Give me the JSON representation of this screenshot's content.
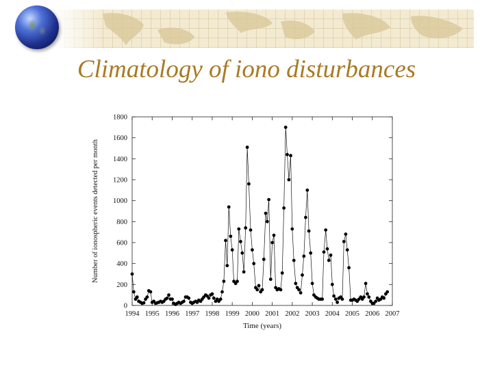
{
  "slide": {
    "title": "Climatology of iono disturbances",
    "accent_color": "#a97a24",
    "banner_color": "#f3ead2",
    "decoration": "globe-icon"
  },
  "chart_data": {
    "type": "scatter",
    "connected": true,
    "marker": "filled-circle",
    "title": "",
    "xlabel": "Time (years)",
    "ylabel": "Number of ionospheric events detected per month",
    "xlim": [
      1994,
      2007
    ],
    "ylim": [
      0,
      1800
    ],
    "xticks": [
      "1994",
      "1995",
      "1996",
      "1997",
      "1998",
      "1999",
      "2000",
      "2001",
      "2002",
      "2003",
      "2004",
      "2005",
      "2006",
      "2007"
    ],
    "yticks": [
      "0",
      "200",
      "400",
      "600",
      "800",
      "1000",
      "1200",
      "1400",
      "1600",
      "1800"
    ],
    "grid": false,
    "series": [
      {
        "color": "#000000",
        "points": [
          [
            1994.0,
            300
          ],
          [
            1994.08,
            130
          ],
          [
            1994.17,
            60
          ],
          [
            1994.25,
            80
          ],
          [
            1994.33,
            40
          ],
          [
            1994.42,
            30
          ],
          [
            1994.5,
            20
          ],
          [
            1994.58,
            25
          ],
          [
            1994.67,
            60
          ],
          [
            1994.75,
            80
          ],
          [
            1994.83,
            140
          ],
          [
            1994.92,
            130
          ],
          [
            1995.0,
            30
          ],
          [
            1995.08,
            40
          ],
          [
            1995.17,
            20
          ],
          [
            1995.25,
            25
          ],
          [
            1995.33,
            30
          ],
          [
            1995.42,
            40
          ],
          [
            1995.5,
            30
          ],
          [
            1995.58,
            40
          ],
          [
            1995.67,
            60
          ],
          [
            1995.75,
            70
          ],
          [
            1995.83,
            100
          ],
          [
            1995.92,
            60
          ],
          [
            1996.0,
            60
          ],
          [
            1996.08,
            20
          ],
          [
            1996.17,
            10
          ],
          [
            1996.25,
            20
          ],
          [
            1996.33,
            30
          ],
          [
            1996.42,
            20
          ],
          [
            1996.5,
            30
          ],
          [
            1996.58,
            40
          ],
          [
            1996.67,
            80
          ],
          [
            1996.75,
            80
          ],
          [
            1996.83,
            70
          ],
          [
            1996.92,
            30
          ],
          [
            1997.0,
            20
          ],
          [
            1997.08,
            30
          ],
          [
            1997.17,
            40
          ],
          [
            1997.25,
            30
          ],
          [
            1997.33,
            50
          ],
          [
            1997.42,
            40
          ],
          [
            1997.5,
            60
          ],
          [
            1997.58,
            80
          ],
          [
            1997.67,
            100
          ],
          [
            1997.75,
            90
          ],
          [
            1997.83,
            70
          ],
          [
            1997.92,
            100
          ],
          [
            1998.0,
            110
          ],
          [
            1998.08,
            70
          ],
          [
            1998.17,
            40
          ],
          [
            1998.25,
            60
          ],
          [
            1998.33,
            40
          ],
          [
            1998.42,
            60
          ],
          [
            1998.5,
            130
          ],
          [
            1998.58,
            230
          ],
          [
            1998.67,
            620
          ],
          [
            1998.75,
            380
          ],
          [
            1998.83,
            940
          ],
          [
            1998.92,
            660
          ],
          [
            1999.0,
            530
          ],
          [
            1999.08,
            230
          ],
          [
            1999.17,
            210
          ],
          [
            1999.25,
            230
          ],
          [
            1999.33,
            730
          ],
          [
            1999.42,
            610
          ],
          [
            1999.5,
            500
          ],
          [
            1999.58,
            320
          ],
          [
            1999.67,
            740
          ],
          [
            1999.75,
            1510
          ],
          [
            1999.83,
            1160
          ],
          [
            1999.92,
            720
          ],
          [
            2000.0,
            530
          ],
          [
            2000.08,
            400
          ],
          [
            2000.17,
            170
          ],
          [
            2000.25,
            150
          ],
          [
            2000.33,
            190
          ],
          [
            2000.42,
            130
          ],
          [
            2000.5,
            150
          ],
          [
            2000.58,
            440
          ],
          [
            2000.67,
            880
          ],
          [
            2000.75,
            800
          ],
          [
            2000.83,
            1010
          ],
          [
            2000.92,
            250
          ],
          [
            2001.0,
            600
          ],
          [
            2001.08,
            670
          ],
          [
            2001.17,
            170
          ],
          [
            2001.25,
            150
          ],
          [
            2001.33,
            160
          ],
          [
            2001.42,
            150
          ],
          [
            2001.5,
            310
          ],
          [
            2001.58,
            930
          ],
          [
            2001.67,
            1700
          ],
          [
            2001.75,
            1440
          ],
          [
            2001.83,
            1200
          ],
          [
            2001.92,
            1430
          ],
          [
            2002.0,
            730
          ],
          [
            2002.08,
            430
          ],
          [
            2002.17,
            210
          ],
          [
            2002.25,
            170
          ],
          [
            2002.33,
            150
          ],
          [
            2002.42,
            120
          ],
          [
            2002.5,
            290
          ],
          [
            2002.58,
            470
          ],
          [
            2002.67,
            840
          ],
          [
            2002.75,
            1100
          ],
          [
            2002.83,
            710
          ],
          [
            2002.92,
            500
          ],
          [
            2003.0,
            210
          ],
          [
            2003.08,
            100
          ],
          [
            2003.17,
            80
          ],
          [
            2003.25,
            70
          ],
          [
            2003.33,
            60
          ],
          [
            2003.42,
            60
          ],
          [
            2003.5,
            60
          ],
          [
            2003.58,
            510
          ],
          [
            2003.67,
            720
          ],
          [
            2003.75,
            540
          ],
          [
            2003.83,
            430
          ],
          [
            2003.92,
            480
          ],
          [
            2004.0,
            200
          ],
          [
            2004.08,
            90
          ],
          [
            2004.17,
            60
          ],
          [
            2004.25,
            30
          ],
          [
            2004.33,
            70
          ],
          [
            2004.42,
            80
          ],
          [
            2004.5,
            60
          ],
          [
            2004.58,
            610
          ],
          [
            2004.67,
            680
          ],
          [
            2004.75,
            530
          ],
          [
            2004.83,
            360
          ],
          [
            2004.92,
            50
          ],
          [
            2005.0,
            50
          ],
          [
            2005.08,
            60
          ],
          [
            2005.17,
            50
          ],
          [
            2005.25,
            40
          ],
          [
            2005.33,
            60
          ],
          [
            2005.42,
            80
          ],
          [
            2005.5,
            60
          ],
          [
            2005.58,
            80
          ],
          [
            2005.67,
            210
          ],
          [
            2005.75,
            110
          ],
          [
            2005.83,
            80
          ],
          [
            2005.92,
            40
          ],
          [
            2006.0,
            20
          ],
          [
            2006.08,
            20
          ],
          [
            2006.17,
            40
          ],
          [
            2006.25,
            70
          ],
          [
            2006.33,
            50
          ],
          [
            2006.42,
            60
          ],
          [
            2006.5,
            80
          ],
          [
            2006.58,
            70
          ],
          [
            2006.67,
            110
          ],
          [
            2006.75,
            130
          ]
        ]
      }
    ]
  }
}
